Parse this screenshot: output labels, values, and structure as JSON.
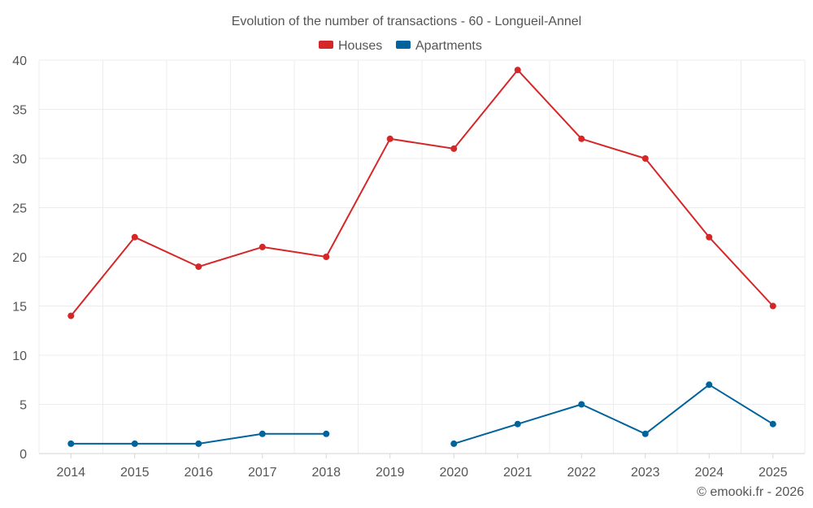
{
  "chart_data": {
    "type": "line",
    "title": "Evolution of the number of transactions - 60 - Longueil-Annel",
    "xlabel": "",
    "ylabel": "",
    "categories": [
      "2014",
      "2015",
      "2016",
      "2017",
      "2018",
      "2019",
      "2020",
      "2021",
      "2022",
      "2023",
      "2024",
      "2025"
    ],
    "ylim": [
      0,
      40
    ],
    "yticks": [
      0,
      5,
      10,
      15,
      20,
      25,
      30,
      35,
      40
    ],
    "grid": true,
    "legend_position": "top-center",
    "series": [
      {
        "name": "Houses",
        "color": "#d62728",
        "values": [
          14,
          22,
          19,
          21,
          20,
          32,
          31,
          39,
          32,
          30,
          22,
          15
        ]
      },
      {
        "name": "Apartments",
        "color": "#00639c",
        "values": [
          1,
          1,
          1,
          2,
          2,
          null,
          1,
          3,
          5,
          2,
          7,
          3
        ]
      }
    ]
  },
  "credit": "© emooki.fr - 2026"
}
